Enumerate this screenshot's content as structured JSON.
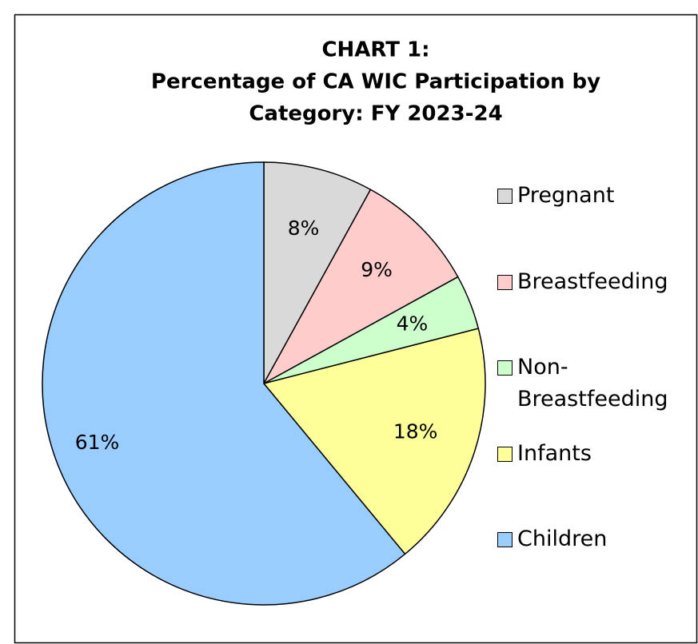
{
  "chart_data": {
    "type": "pie",
    "title": [
      "CHART 1:",
      "Percentage of CA WIC Participation by",
      "Category: FY 2023-24"
    ],
    "categories": [
      "Pregnant",
      "Breastfeeding",
      "Non-Breastfeeding",
      "Infants",
      "Children"
    ],
    "values": [
      8,
      9,
      4,
      18,
      61
    ],
    "value_labels": [
      "8%",
      "9%",
      "4%",
      "18%",
      "61%"
    ],
    "colors": [
      "#d9d9d9",
      "#ffcccc",
      "#ccffcc",
      "#ffff99",
      "#99ccff"
    ],
    "legend": "right"
  }
}
